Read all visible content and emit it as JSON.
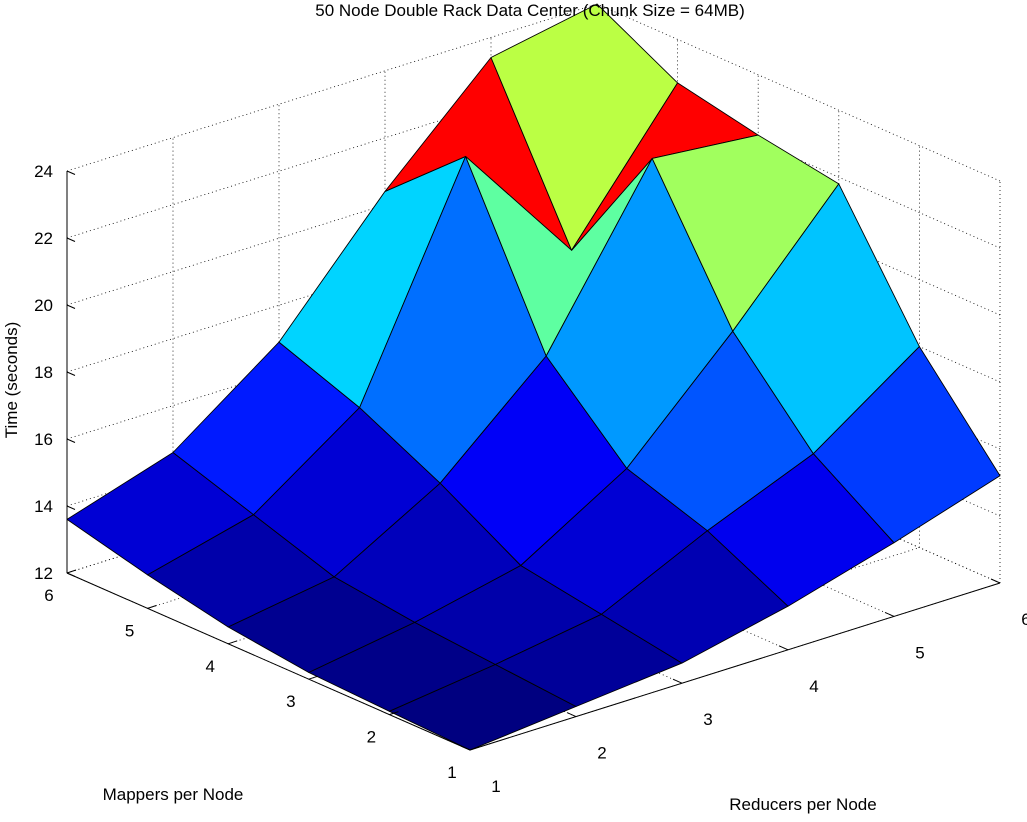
{
  "chart_data": {
    "type": "surface",
    "title": "50 Node Double Rack Data Center (Chunk Size = 64MB)",
    "xlabel": "Mappers per Node",
    "ylabel": "Reducers per Node",
    "zlabel": "Time (seconds)",
    "mappers": [
      1,
      2,
      3,
      4,
      5,
      6
    ],
    "reducers": [
      1,
      2,
      3,
      4,
      5,
      6
    ],
    "mapper_tick_labels": [
      "1",
      "2",
      "3",
      "4",
      "5",
      "6"
    ],
    "reducer_tick_labels": [
      "1",
      "2",
      "3",
      "4",
      "5",
      "6"
    ],
    "zlim": [
      12,
      24
    ],
    "z_ticks": [
      12,
      14,
      16,
      18,
      20,
      22,
      24
    ],
    "z_tick_labels": [
      "12",
      "14",
      "16",
      "18",
      "20",
      "22",
      "24"
    ],
    "grid": true,
    "colormap": "jet",
    "time_seconds_by_mapper": [
      [
        12.0,
        12.3,
        12.6,
        13.3,
        14.2,
        15.2
      ],
      [
        12.1,
        12.5,
        13.0,
        14.5,
        15.8,
        18.0
      ],
      [
        12.2,
        12.7,
        13.4,
        15.3,
        18.4,
        21.8
      ],
      [
        12.5,
        13.0,
        14.8,
        17.6,
        22.5,
        22.2
      ],
      [
        13.0,
        13.8,
        16.0,
        22.5,
        18.7,
        22.7
      ],
      [
        13.6,
        14.6,
        16.9,
        20.4,
        23.4,
        24.0
      ]
    ]
  }
}
